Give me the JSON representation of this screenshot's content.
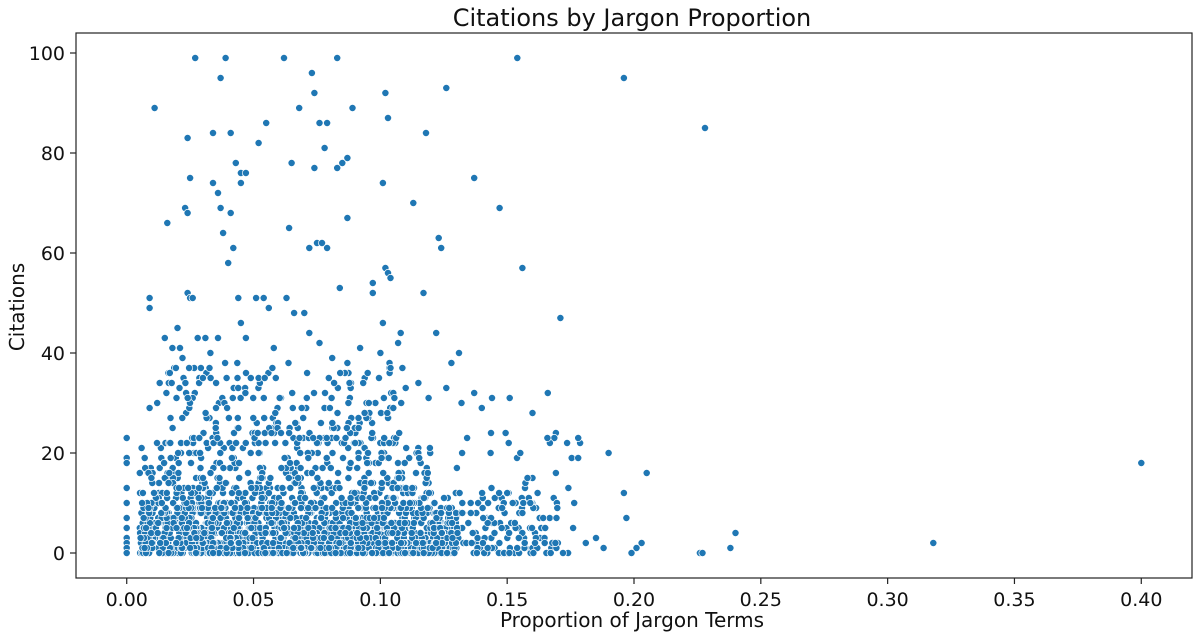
{
  "chart_data": {
    "type": "scatter",
    "title": "Citations by Jargon Proportion",
    "xlabel": "Proportion of Jargon Terms",
    "ylabel": "Citations",
    "xlim": [
      -0.02,
      0.42
    ],
    "ylim": [
      -5,
      104
    ],
    "xticks": [
      "0.00",
      "0.05",
      "0.10",
      "0.15",
      "0.20",
      "0.25",
      "0.30",
      "0.35",
      "0.40"
    ],
    "yticks": [
      "0",
      "20",
      "40",
      "60",
      "80",
      "100"
    ],
    "grid": false,
    "marker_color": "#1f77b4",
    "marker_edge": "#ffffff",
    "points": [
      [
        0.0,
        23
      ],
      [
        0.0,
        19
      ],
      [
        0.0,
        18
      ],
      [
        0.0,
        13
      ],
      [
        0.0,
        10
      ],
      [
        0.0,
        7
      ],
      [
        0.0,
        5
      ],
      [
        0.0,
        3
      ],
      [
        0.0,
        2
      ],
      [
        0.0,
        1
      ],
      [
        0.0,
        0
      ],
      [
        0.009,
        51
      ],
      [
        0.009,
        49
      ],
      [
        0.011,
        89
      ],
      [
        0.016,
        66
      ],
      [
        0.015,
        43
      ],
      [
        0.018,
        41
      ],
      [
        0.02,
        45
      ],
      [
        0.024,
        52
      ],
      [
        0.025,
        51
      ],
      [
        0.026,
        51
      ],
      [
        0.024,
        83
      ],
      [
        0.025,
        75
      ],
      [
        0.023,
        69
      ],
      [
        0.024,
        68
      ],
      [
        0.027,
        99
      ],
      [
        0.037,
        95
      ],
      [
        0.039,
        99
      ],
      [
        0.034,
        84
      ],
      [
        0.041,
        84
      ],
      [
        0.034,
        74
      ],
      [
        0.036,
        72
      ],
      [
        0.037,
        69
      ],
      [
        0.038,
        64
      ],
      [
        0.041,
        68
      ],
      [
        0.04,
        58
      ],
      [
        0.042,
        61
      ],
      [
        0.043,
        78
      ],
      [
        0.045,
        76
      ],
      [
        0.047,
        76
      ],
      [
        0.045,
        74
      ],
      [
        0.052,
        82
      ],
      [
        0.055,
        86
      ],
      [
        0.062,
        99
      ],
      [
        0.065,
        78
      ],
      [
        0.064,
        65
      ],
      [
        0.068,
        89
      ],
      [
        0.073,
        96
      ],
      [
        0.074,
        92
      ],
      [
        0.076,
        86
      ],
      [
        0.079,
        86
      ],
      [
        0.078,
        81
      ],
      [
        0.074,
        77
      ],
      [
        0.083,
        99
      ],
      [
        0.083,
        77
      ],
      [
        0.085,
        78
      ],
      [
        0.087,
        79
      ],
      [
        0.089,
        89
      ],
      [
        0.087,
        67
      ],
      [
        0.075,
        62
      ],
      [
        0.077,
        62
      ],
      [
        0.079,
        61
      ],
      [
        0.072,
        61
      ],
      [
        0.084,
        53
      ],
      [
        0.102,
        92
      ],
      [
        0.103,
        87
      ],
      [
        0.101,
        74
      ],
      [
        0.113,
        70
      ],
      [
        0.118,
        84
      ],
      [
        0.126,
        93
      ],
      [
        0.123,
        63
      ],
      [
        0.124,
        61
      ],
      [
        0.102,
        57
      ],
      [
        0.103,
        56
      ],
      [
        0.104,
        55
      ],
      [
        0.097,
        54
      ],
      [
        0.097,
        52
      ],
      [
        0.117,
        52
      ],
      [
        0.137,
        75
      ],
      [
        0.147,
        69
      ],
      [
        0.154,
        99
      ],
      [
        0.156,
        57
      ],
      [
        0.171,
        47
      ],
      [
        0.196,
        95
      ],
      [
        0.228,
        85
      ],
      [
        0.122,
        44
      ],
      [
        0.131,
        40
      ],
      [
        0.128,
        38
      ],
      [
        0.101,
        46
      ],
      [
        0.108,
        44
      ],
      [
        0.107,
        42
      ],
      [
        0.009,
        29
      ],
      [
        0.012,
        30
      ],
      [
        0.013,
        34
      ],
      [
        0.017,
        36
      ],
      [
        0.021,
        41
      ],
      [
        0.022,
        39
      ],
      [
        0.028,
        43
      ],
      [
        0.031,
        43
      ],
      [
        0.033,
        40
      ],
      [
        0.036,
        43
      ],
      [
        0.044,
        51
      ],
      [
        0.045,
        46
      ],
      [
        0.047,
        43
      ],
      [
        0.051,
        51
      ],
      [
        0.054,
        51
      ],
      [
        0.056,
        49
      ],
      [
        0.058,
        41
      ],
      [
        0.063,
        51
      ],
      [
        0.066,
        48
      ],
      [
        0.07,
        48
      ],
      [
        0.072,
        44
      ],
      [
        0.076,
        42
      ],
      [
        0.081,
        39
      ],
      [
        0.087,
        38
      ],
      [
        0.092,
        41
      ],
      [
        0.095,
        36
      ],
      [
        0.1,
        40
      ],
      [
        0.104,
        37
      ],
      [
        0.11,
        33
      ],
      [
        0.115,
        34
      ],
      [
        0.119,
        31
      ],
      [
        0.126,
        33
      ],
      [
        0.132,
        30
      ],
      [
        0.137,
        32
      ],
      [
        0.14,
        29
      ],
      [
        0.144,
        31
      ],
      [
        0.151,
        31
      ],
      [
        0.16,
        28
      ],
      [
        0.166,
        32
      ],
      [
        0.178,
        23
      ],
      [
        0.178,
        19
      ],
      [
        0.19,
        20
      ],
      [
        0.196,
        12
      ],
      [
        0.197,
        7
      ],
      [
        0.203,
        2
      ],
      [
        0.205,
        16
      ],
      [
        0.201,
        1
      ],
      [
        0.199,
        0
      ],
      [
        0.226,
        0
      ],
      [
        0.227,
        0
      ],
      [
        0.238,
        1
      ],
      [
        0.24,
        4
      ],
      [
        0.318,
        2
      ],
      [
        0.4,
        18
      ],
      [
        0.188,
        1
      ],
      [
        0.185,
        3
      ],
      [
        0.181,
        2
      ],
      [
        0.176,
        5
      ],
      [
        0.174,
        0
      ],
      [
        0.172,
        0
      ],
      [
        0.169,
        2
      ],
      [
        0.165,
        5
      ],
      [
        0.162,
        12
      ],
      [
        0.16,
        15
      ],
      [
        0.158,
        15
      ],
      [
        0.156,
        8
      ],
      [
        0.153,
        6
      ],
      [
        0.15,
        12
      ],
      [
        0.148,
        9
      ],
      [
        0.145,
        4
      ]
    ],
    "dense_regions": [
      {
        "x_from": 0.005,
        "x_to": 0.13,
        "y_from": 0,
        "y_to": 9,
        "count": 1400
      },
      {
        "x_from": 0.005,
        "x_to": 0.12,
        "y_from": 9,
        "y_to": 22,
        "count": 450
      },
      {
        "x_from": 0.015,
        "x_to": 0.11,
        "y_from": 22,
        "y_to": 38,
        "count": 220
      },
      {
        "x_from": 0.12,
        "x_to": 0.17,
        "y_from": 0,
        "y_to": 12,
        "count": 160
      },
      {
        "x_from": 0.13,
        "x_to": 0.18,
        "y_from": 10,
        "y_to": 25,
        "count": 30
      }
    ]
  }
}
